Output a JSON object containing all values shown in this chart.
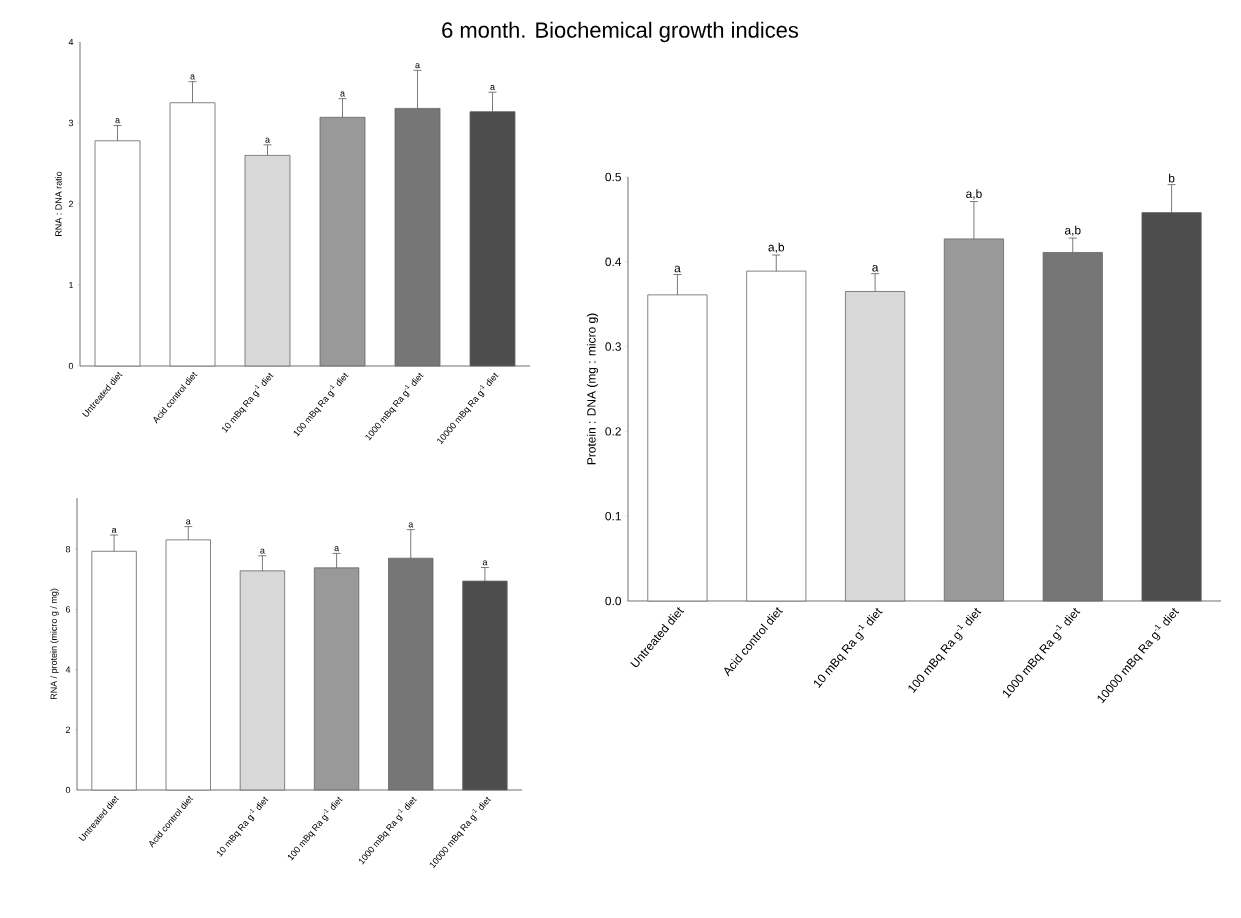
{
  "chart_data": [
    {
      "type": "bar",
      "title": "6 month. Biochemical growth indices",
      "ylabel": "RNA : DNA ratio",
      "categories": [
        "Untreated diet",
        "Acid control diet",
        "10 mBq Ra g$^{-1}$ diet",
        "100 mBq Ra g$^{-1}$ diet",
        "1000 mBq Ra g$^{-1}$ diet",
        "10000 mBq Ra g$^{-1}$ diet"
      ],
      "values": [
        2.78,
        3.25,
        2.6,
        3.07,
        3.18,
        3.14
      ],
      "errors": [
        0.19,
        0.26,
        0.13,
        0.23,
        0.47,
        0.24
      ],
      "colors": [
        "#ffffff",
        "#ffffff",
        "#d8d8d8",
        "#999999",
        "#767676",
        "#4d4d4d"
      ],
      "ylim": [
        0,
        4
      ],
      "yticks": [
        0,
        1,
        2,
        3,
        4
      ],
      "annotations": [
        {
          "text": "a",
          "x": "Untreated diet",
          "y": 2.97
        },
        {
          "text": "a",
          "x": "Acid control diet",
          "y": 3.51
        },
        {
          "text": "a",
          "x": "10 mBq Ra g$^{-1}$ diet",
          "y": 2.73
        },
        {
          "text": "a",
          "x": "100 mBq Ra g$^{-1}$ diet",
          "y": 3.3
        },
        {
          "text": "a",
          "x": "1000 mBq Ra g$^{-1}$ diet",
          "y": 3.65
        },
        {
          "text": "a",
          "x": "10000 mBq Ra g$^{-1}$ diet",
          "y": 3.38
        }
      ]
    },
    {
      "type": "bar",
      "ylabel": "Protein : DNA (mg : micro g)",
      "categories": [
        "Untreated diet",
        "Acid control diet",
        "10 mBq Ra g$^{-1}$ diet",
        "100 mBq Ra g$^{-1}$ diet",
        "1000 mBq Ra g$^{-1}$ diet",
        "10000 mBq Ra g$^{-1}$ diet"
      ],
      "values": [
        0.361,
        0.389,
        0.365,
        0.427,
        0.411,
        0.458
      ],
      "errors": [
        0.024,
        0.019,
        0.021,
        0.044,
        0.017,
        0.033
      ],
      "colors": [
        "#ffffff",
        "#ffffff",
        "#d8d8d8",
        "#999999",
        "#767676",
        "#4d4d4d"
      ],
      "ylim": [
        0,
        0.5
      ],
      "yticks": [
        {
          "value": 0,
          "label": "0.0"
        },
        0.1,
        0.2,
        0.3,
        0.4,
        0.5
      ],
      "annotations": [
        {
          "text": "a",
          "x": "Untreated diet",
          "y": 0.385
        },
        {
          "text": "a,b",
          "x": "Acid control diet",
          "y": 0.408
        },
        {
          "text": "a",
          "x": "10 mBq Ra g$^{-1}$ diet",
          "y": 0.386
        },
        {
          "text": "a,b",
          "x": "100 mBq Ra g$^{-1}$ diet",
          "y": 0.471
        },
        {
          "text": "a,b",
          "x": "1000 mBq Ra g$^{-1}$ diet",
          "y": 0.428
        },
        {
          "text": "b",
          "x": "10000 mBq Ra g$^{-1}$ diet",
          "y": 0.491
        }
      ]
    },
    {
      "type": "bar",
      "ylabel": "RNA / protein (micro g / mg)",
      "categories": [
        "Untreated diet",
        "Acid control diet",
        "10 mBq Ra g$^{-1}$ diet",
        "100 mBq Ra g$^{-1}$ diet",
        "1000 mBq Ra g$^{-1}$ diet",
        "10000 mBq Ra g$^{-1}$ diet"
      ],
      "values": [
        7.93,
        8.31,
        7.28,
        7.38,
        7.7,
        6.94
      ],
      "errors": [
        0.54,
        0.44,
        0.5,
        0.48,
        0.95,
        0.45
      ],
      "colors": [
        "#ffffff",
        "#ffffff",
        "#d8d8d8",
        "#999999",
        "#767676",
        "#4d4d4d"
      ],
      "ylim": [
        0,
        9.7
      ],
      "yticks": [
        0,
        2,
        4,
        6,
        8
      ],
      "annotations": [
        {
          "text": "a",
          "x": "Untreated diet",
          "y": 8.47
        },
        {
          "text": "a",
          "x": "Acid control diet",
          "y": 8.75
        },
        {
          "text": "a",
          "x": "10 mBq Ra g$^{-1}$ diet",
          "y": 7.78
        },
        {
          "text": "a",
          "x": "100 mBq Ra g$^{-1}$ diet",
          "y": 7.86
        },
        {
          "text": "a",
          "x": "1000 mBq Ra g$^{-1}$ diet",
          "y": 8.65
        },
        {
          "text": "a",
          "x": "10000 mBq Ra g$^{-1}$ diet",
          "y": 7.39
        }
      ]
    }
  ]
}
